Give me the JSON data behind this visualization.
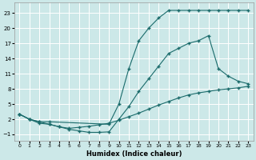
{
  "xlabel": "Humidex (Indice chaleur)",
  "bg_color": "#cce8e8",
  "grid_color": "#ffffff",
  "line_color": "#1a6b6b",
  "xlim": [
    -0.5,
    23.5
  ],
  "ylim": [
    -2.2,
    25.0
  ],
  "xticks": [
    0,
    1,
    2,
    3,
    4,
    5,
    6,
    7,
    8,
    9,
    10,
    11,
    12,
    13,
    14,
    15,
    16,
    17,
    18,
    19,
    20,
    21,
    22,
    23
  ],
  "yticks": [
    -1,
    2,
    5,
    8,
    11,
    14,
    17,
    20,
    23
  ],
  "curve1_x": [
    0,
    1,
    2,
    3,
    9,
    10,
    11,
    12,
    13,
    14,
    15,
    16,
    17,
    18,
    19,
    20,
    21,
    22,
    23
  ],
  "curve1_y": [
    3,
    2,
    1.5,
    1.5,
    1.0,
    5,
    12,
    17.5,
    20,
    22,
    23.5,
    23.5,
    23.5,
    23.5,
    23.5,
    23.5,
    23.5,
    23.5,
    23.5
  ],
  "curve2_x": [
    0,
    1,
    2,
    3,
    4,
    5,
    6,
    7,
    8,
    9,
    10,
    11,
    12,
    13,
    14,
    15,
    16,
    17,
    18,
    19,
    20,
    21,
    22,
    23
  ],
  "curve2_y": [
    3,
    2,
    1.5,
    1.0,
    0.5,
    0.0,
    -0.3,
    -0.6,
    -0.6,
    -0.5,
    2,
    4.5,
    7.5,
    10,
    12.5,
    15,
    16,
    17,
    17.5,
    18.5,
    12,
    10.5,
    9.5,
    9.0
  ],
  "curve3_x": [
    0,
    1,
    2,
    3,
    4,
    5,
    6,
    7,
    8,
    9,
    10,
    11,
    12,
    13,
    14,
    15,
    16,
    17,
    18,
    19,
    20,
    21,
    22,
    23
  ],
  "curve3_y": [
    3,
    2,
    1.2,
    1.0,
    0.5,
    0.2,
    0.4,
    0.6,
    0.9,
    1.2,
    1.8,
    2.5,
    3.2,
    4.0,
    4.8,
    5.5,
    6.2,
    6.8,
    7.2,
    7.5,
    7.8,
    8.0,
    8.2,
    8.5
  ]
}
